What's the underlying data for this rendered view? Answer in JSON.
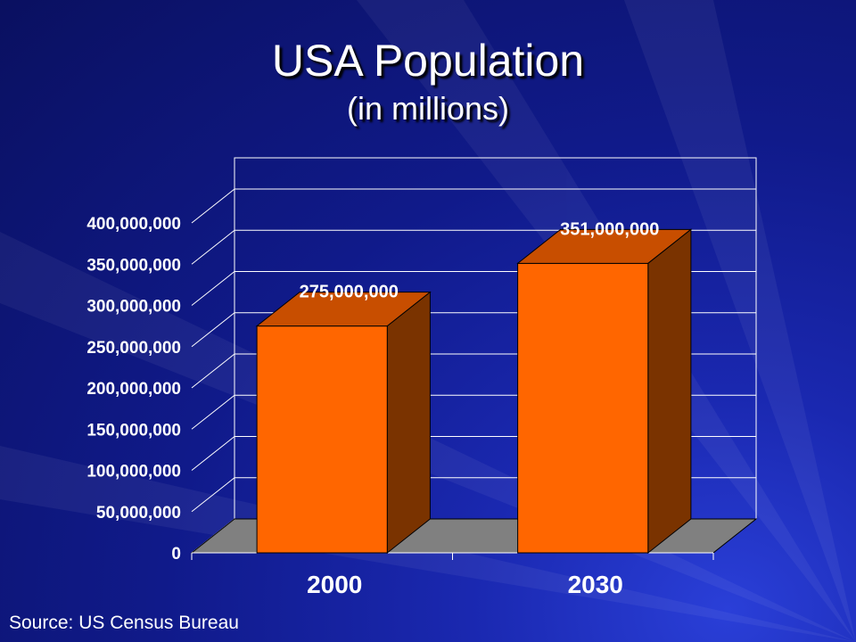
{
  "slide": {
    "title": "USA Population",
    "subtitle": "(in millions)",
    "source": "Source: US Census Bureau"
  },
  "colors": {
    "background": "#101a8a",
    "bar_front": "#ff6600",
    "bar_top": "#c84e00",
    "bar_side": "#7a3300",
    "floor": "#808080",
    "text": "#ffffff"
  },
  "chart_data": {
    "type": "bar",
    "style": "3d",
    "categories": [
      "2000",
      "2030"
    ],
    "values": [
      275000000,
      351000000
    ],
    "data_labels": [
      "275,000,000",
      "351,000,000"
    ],
    "yticks": [
      "0",
      "50,000,000",
      "100,000,000",
      "150,000,000",
      "200,000,000",
      "250,000,000",
      "300,000,000",
      "350,000,000",
      "400,000,000"
    ],
    "ylim": [
      0,
      400000000
    ],
    "grid": true,
    "legend": "none"
  }
}
